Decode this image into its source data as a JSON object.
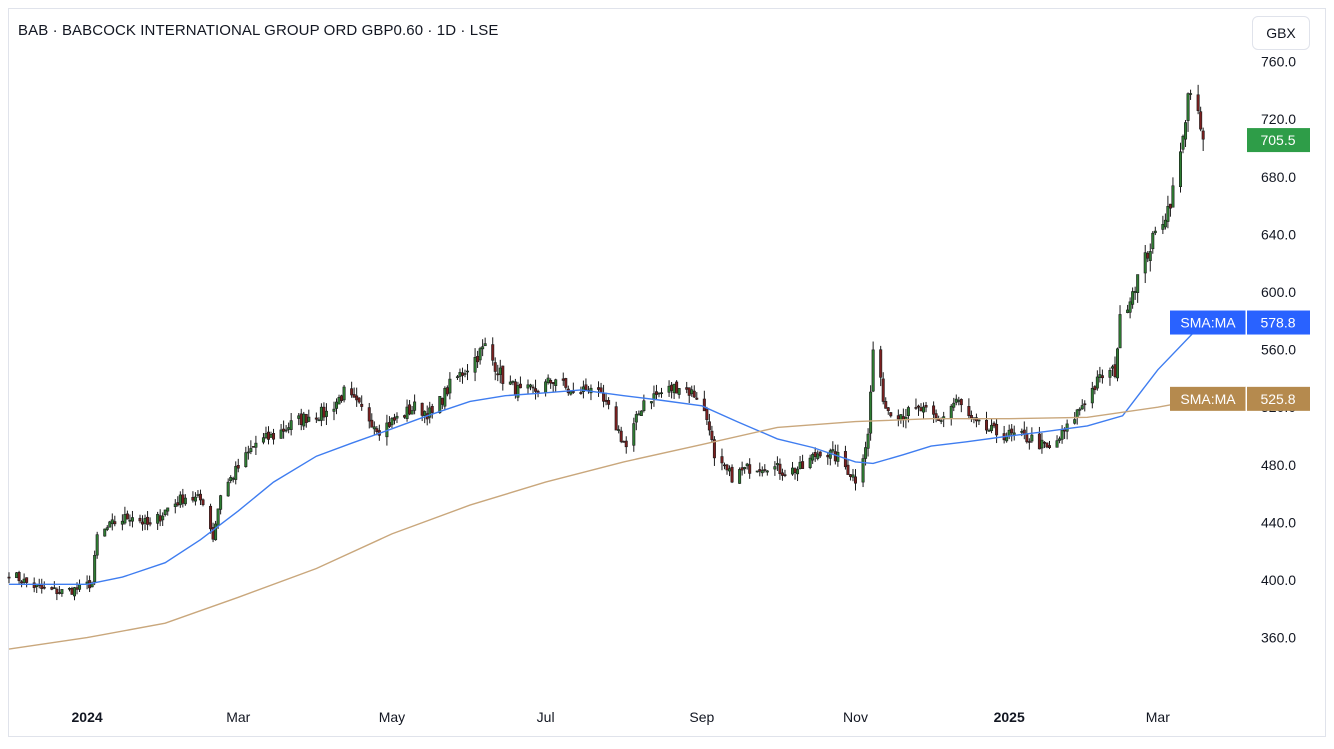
{
  "header": {
    "title": "BAB · BABCOCK INTERNATIONAL GROUP ORD GBP0.60 · 1D · LSE",
    "currency": "GBX"
  },
  "colors": {
    "up": "#26a69a",
    "down": "#8b1a1a",
    "candle_up_fill": "#2e7d32",
    "candle_down_fill": "#7a1f1f",
    "sma_fast": "#3f7df0",
    "sma_slow": "#c9a77c",
    "last_price_bg": "#2e9d48",
    "sma_fast_tag_bg": "#2962ff",
    "sma_slow_tag_bg": "#b58a4e"
  },
  "chart_data": {
    "type": "candlestick",
    "title": "BAB · BABCOCK INTERNATIONAL GROUP ORD GBP0.60 · 1D · LSE",
    "currency": "GBX",
    "ylim": [
      325,
      775
    ],
    "y_ticks": [
      360.0,
      400.0,
      440.0,
      480.0,
      520.0,
      560.0,
      600.0,
      640.0,
      680.0,
      720.0,
      760.0
    ],
    "x_range": [
      "2023-12-01",
      "2025-04-05"
    ],
    "x_ticks": [
      {
        "label": "2024",
        "date": "2024-01-01",
        "bold": true
      },
      {
        "label": "Mar",
        "date": "2024-03-01",
        "bold": false
      },
      {
        "label": "May",
        "date": "2024-05-01",
        "bold": false
      },
      {
        "label": "Jul",
        "date": "2024-07-01",
        "bold": false
      },
      {
        "label": "Sep",
        "date": "2024-09-01",
        "bold": false
      },
      {
        "label": "Nov",
        "date": "2024-11-01",
        "bold": false
      },
      {
        "label": "2025",
        "date": "2025-01-01",
        "bold": true
      },
      {
        "label": "Mar",
        "date": "2025-03-01",
        "bold": false
      }
    ],
    "last_price": 705.5,
    "price_path": [
      [
        "2023-12-01",
        405
      ],
      [
        "2023-12-08",
        398
      ],
      [
        "2023-12-15",
        393
      ],
      [
        "2023-12-22",
        392
      ],
      [
        "2023-12-29",
        394
      ],
      [
        "2024-01-03",
        398
      ],
      [
        "2024-01-05",
        430
      ],
      [
        "2024-01-12",
        440
      ],
      [
        "2024-01-19",
        445
      ],
      [
        "2024-01-26",
        437
      ],
      [
        "2024-02-02",
        450
      ],
      [
        "2024-02-09",
        458
      ],
      [
        "2024-02-16",
        455
      ],
      [
        "2024-02-20",
        430
      ],
      [
        "2024-02-23",
        460
      ],
      [
        "2024-03-01",
        478
      ],
      [
        "2024-03-08",
        495
      ],
      [
        "2024-03-15",
        500
      ],
      [
        "2024-03-22",
        508
      ],
      [
        "2024-03-29",
        514
      ],
      [
        "2024-04-05",
        516
      ],
      [
        "2024-04-12",
        530
      ],
      [
        "2024-04-19",
        518
      ],
      [
        "2024-04-26",
        505
      ],
      [
        "2024-05-03",
        512
      ],
      [
        "2024-05-10",
        520
      ],
      [
        "2024-05-17",
        515
      ],
      [
        "2024-05-24",
        535
      ],
      [
        "2024-05-31",
        548
      ],
      [
        "2024-06-07",
        562
      ],
      [
        "2024-06-14",
        540
      ],
      [
        "2024-06-21",
        530
      ],
      [
        "2024-06-28",
        532
      ],
      [
        "2024-07-05",
        540
      ],
      [
        "2024-07-12",
        528
      ],
      [
        "2024-07-19",
        535
      ],
      [
        "2024-07-26",
        518
      ],
      [
        "2024-08-02",
        492
      ],
      [
        "2024-08-09",
        525
      ],
      [
        "2024-08-16",
        530
      ],
      [
        "2024-08-23",
        535
      ],
      [
        "2024-08-30",
        528
      ],
      [
        "2024-09-04",
        508
      ],
      [
        "2024-09-06",
        482
      ],
      [
        "2024-09-13",
        472
      ],
      [
        "2024-09-20",
        478
      ],
      [
        "2024-09-27",
        480
      ],
      [
        "2024-10-04",
        475
      ],
      [
        "2024-10-11",
        478
      ],
      [
        "2024-10-18",
        490
      ],
      [
        "2024-10-25",
        485
      ],
      [
        "2024-11-01",
        470
      ],
      [
        "2024-11-06",
        500
      ],
      [
        "2024-11-08",
        560
      ],
      [
        "2024-11-13",
        520
      ],
      [
        "2024-11-20",
        515
      ],
      [
        "2024-11-27",
        518
      ],
      [
        "2024-12-04",
        510
      ],
      [
        "2024-12-11",
        525
      ],
      [
        "2024-12-18",
        508
      ],
      [
        "2024-12-27",
        502
      ],
      [
        "2025-01-03",
        500
      ],
      [
        "2025-01-10",
        498
      ],
      [
        "2025-01-17",
        490
      ],
      [
        "2025-01-24",
        505
      ],
      [
        "2025-01-31",
        525
      ],
      [
        "2025-02-07",
        542
      ],
      [
        "2025-02-12",
        545
      ],
      [
        "2025-02-14",
        580
      ],
      [
        "2025-02-21",
        610
      ],
      [
        "2025-02-28",
        640
      ],
      [
        "2025-03-05",
        658
      ],
      [
        "2025-03-07",
        670
      ],
      [
        "2025-03-11",
        705
      ],
      [
        "2025-03-13",
        740
      ],
      [
        "2025-03-17",
        720
      ],
      [
        "2025-03-19",
        705
      ]
    ],
    "series": [
      {
        "name": "SMA:MA",
        "last_value": 578.8,
        "points": [
          [
            "2023-12-01",
            397
          ],
          [
            "2024-01-01",
            397
          ],
          [
            "2024-01-15",
            402
          ],
          [
            "2024-02-01",
            412
          ],
          [
            "2024-02-15",
            428
          ],
          [
            "2024-03-01",
            448
          ],
          [
            "2024-03-15",
            468
          ],
          [
            "2024-04-01",
            486
          ],
          [
            "2024-04-15",
            495
          ],
          [
            "2024-05-01",
            505
          ],
          [
            "2024-05-15",
            514
          ],
          [
            "2024-06-01",
            524
          ],
          [
            "2024-06-15",
            528
          ],
          [
            "2024-07-01",
            530
          ],
          [
            "2024-07-15",
            532
          ],
          [
            "2024-08-01",
            528
          ],
          [
            "2024-08-15",
            525
          ],
          [
            "2024-09-01",
            521
          ],
          [
            "2024-09-15",
            510
          ],
          [
            "2024-10-01",
            498
          ],
          [
            "2024-10-15",
            492
          ],
          [
            "2024-11-01",
            482
          ],
          [
            "2024-11-08",
            481
          ],
          [
            "2024-11-20",
            487
          ],
          [
            "2024-12-01",
            493
          ],
          [
            "2024-12-15",
            496
          ],
          [
            "2025-01-01",
            500
          ],
          [
            "2025-01-15",
            503
          ],
          [
            "2025-02-01",
            507
          ],
          [
            "2025-02-15",
            514
          ],
          [
            "2025-03-01",
            546
          ],
          [
            "2025-03-19",
            578.8
          ]
        ]
      },
      {
        "name": "SMA:MA",
        "last_value": 525.8,
        "points": [
          [
            "2023-12-01",
            352
          ],
          [
            "2024-01-01",
            360
          ],
          [
            "2024-02-01",
            370
          ],
          [
            "2024-03-01",
            388
          ],
          [
            "2024-04-01",
            408
          ],
          [
            "2024-05-01",
            432
          ],
          [
            "2024-06-01",
            452
          ],
          [
            "2024-07-01",
            468
          ],
          [
            "2024-08-01",
            482
          ],
          [
            "2024-09-01",
            494
          ],
          [
            "2024-10-01",
            506
          ],
          [
            "2024-11-01",
            510
          ],
          [
            "2024-12-01",
            512
          ],
          [
            "2025-01-01",
            512
          ],
          [
            "2025-02-01",
            513
          ],
          [
            "2025-03-01",
            520
          ],
          [
            "2025-03-19",
            525.8
          ]
        ]
      }
    ]
  }
}
